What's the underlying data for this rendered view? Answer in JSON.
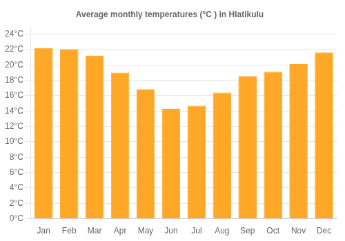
{
  "chart_data": {
    "type": "bar",
    "title": "Average monthly temperatures (°C ) in Hlatikulu",
    "categories": [
      "Jan",
      "Feb",
      "Mar",
      "Apr",
      "May",
      "Jun",
      "Jul",
      "Aug",
      "Sep",
      "Oct",
      "Nov",
      "Dec"
    ],
    "values": [
      22.2,
      22.0,
      21.2,
      19.0,
      16.8,
      14.3,
      14.7,
      16.4,
      18.5,
      19.1,
      20.1,
      21.6
    ],
    "color": "#FFA726",
    "ylim": [
      0,
      25
    ],
    "yticks": [
      {
        "value": 0,
        "label": "0°C"
      },
      {
        "value": 2,
        "label": "2°C"
      },
      {
        "value": 4,
        "label": "4°C"
      },
      {
        "value": 6,
        "label": "6°C"
      },
      {
        "value": 8,
        "label": "8°C"
      },
      {
        "value": 10,
        "label": "10°C"
      },
      {
        "value": 12,
        "label": "12°C"
      },
      {
        "value": 14,
        "label": "14°C"
      },
      {
        "value": 16,
        "label": "16°C"
      },
      {
        "value": 18,
        "label": "18°C"
      },
      {
        "value": 20,
        "label": "20°C"
      },
      {
        "value": 22,
        "label": "22°C"
      },
      {
        "value": 24,
        "label": "24°C"
      }
    ],
    "grid": true
  }
}
